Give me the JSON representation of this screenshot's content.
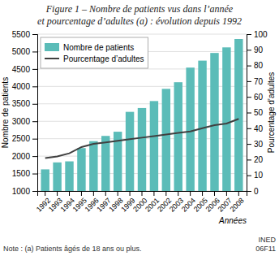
{
  "chart_data": {
    "type": "bar",
    "title": "Figure 1 – Nombre de patients vus dans l’année",
    "subtitle": "et pourcentage d’adultes (a) : évolution depuis 1992",
    "xlabel": "Années",
    "ylabel": "Nombre de patients",
    "y2label": "Pourcentage d’adultes",
    "annotations": [
      "Note : (a) Patients âgés de 18 ans ou plus.",
      "INED\n06F11"
    ],
    "categories": [
      "1992",
      "1993",
      "1994",
      "1995",
      "1996",
      "1997",
      "1998",
      "1999",
      "2000",
      "2001",
      "2002",
      "2003",
      "2004",
      "2005",
      "2006",
      "2007",
      "2008"
    ],
    "series": [
      {
        "name": "Nombre de patients",
        "type": "bar",
        "color": "#5bbcb8",
        "values": [
          1620,
          1820,
          1850,
          2230,
          2430,
          2580,
          2700,
          3270,
          3380,
          3580,
          3930,
          4120,
          4540,
          4740,
          4960,
          5120,
          5360
        ]
      },
      {
        "name": "Pourcentage d’adultes",
        "type": "line",
        "color": "#404040",
        "axis": "y2",
        "line_style": "solid",
        "values": [
          21,
          22,
          24,
          28,
          30,
          31,
          32,
          33,
          34,
          35,
          36,
          37,
          38,
          40,
          42,
          43,
          46
        ]
      }
    ],
    "ylim": [
      1000,
      5500
    ],
    "yticks": [
      1000,
      1500,
      2000,
      2500,
      3000,
      3500,
      4000,
      4500,
      5000,
      5500
    ],
    "y2lim": [
      0,
      100
    ],
    "y2ticks": [
      0,
      10,
      20,
      30,
      40,
      50,
      60,
      70,
      80,
      90,
      100
    ],
    "grid": true,
    "legend": "upper left"
  }
}
